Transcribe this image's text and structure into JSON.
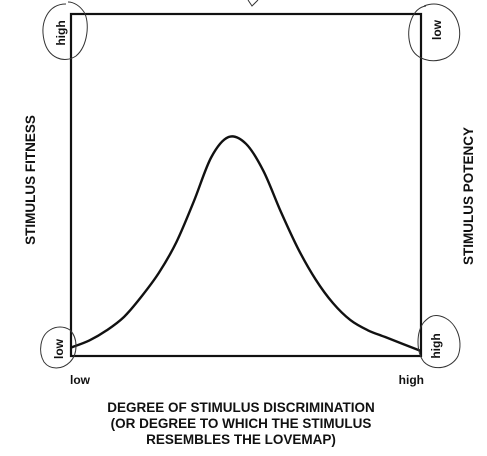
{
  "chart_data": {
    "type": "line",
    "title": "",
    "xlabel": [
      "DEGREE OF STIMULUS DISCRIMINATION",
      "(OR DEGREE TO WHICH THE STIMULUS",
      "RESEMBLES THE LOVEMAP)"
    ],
    "ylabel_left": "STIMULUS FITNESS",
    "ylabel_right": "STIMULUS POTENCY",
    "x_ticks": [
      "low",
      "high"
    ],
    "y_left_ticks": [
      "low",
      "high"
    ],
    "y_right_ticks": [
      "high",
      "low"
    ],
    "xlim": [
      0,
      1
    ],
    "ylim": [
      0,
      1
    ],
    "grid": false,
    "legend": "none",
    "line_color": "#111111",
    "series": [
      {
        "x": [
          0,
          0.05,
          0.1,
          0.15,
          0.2,
          0.25,
          0.3,
          0.35,
          0.4,
          0.45,
          0.5,
          0.55,
          0.6,
          0.65,
          0.7,
          0.75,
          0.8,
          0.85,
          0.9,
          0.95,
          1
        ],
        "y": [
          0.02,
          0.04,
          0.07,
          0.11,
          0.17,
          0.24,
          0.33,
          0.45,
          0.58,
          0.64,
          0.62,
          0.54,
          0.42,
          0.31,
          0.22,
          0.15,
          0.1,
          0.07,
          0.05,
          0.03,
          0.01
        ]
      }
    ]
  }
}
